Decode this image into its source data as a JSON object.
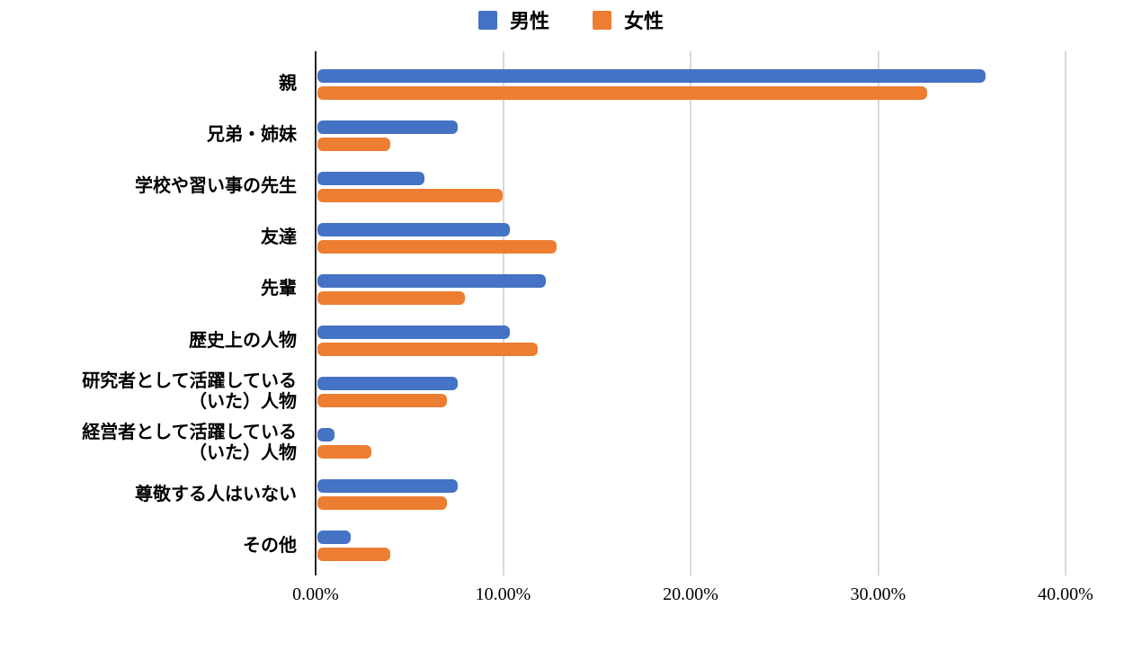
{
  "legend": {
    "items": [
      {
        "id": "male",
        "label": "男性",
        "color": "#4472C4"
      },
      {
        "id": "female",
        "label": "女性",
        "color": "#ED7D31"
      }
    ]
  },
  "chart_data": {
    "type": "bar",
    "orientation": "horizontal",
    "title": "",
    "xlabel": "",
    "ylabel": "",
    "xlim": [
      0,
      40
    ],
    "grid": true,
    "legend_position": "top",
    "x_tick_labels": [
      "0.00%",
      "10.00%",
      "20.00%",
      "30.00%",
      "40.00%"
    ],
    "categories": [
      "親",
      "兄弟・姉妹",
      "学校や習い事の先生",
      "友達",
      "先輩",
      "歴史上の人物",
      "研究者として活躍している（いた）人物",
      "経営者として活躍している（いた）人物",
      "尊敬する人はいない",
      "その他"
    ],
    "categories_display": [
      [
        "親"
      ],
      [
        "兄弟・姉妹"
      ],
      [
        "学校や習い事の先生"
      ],
      [
        "友達"
      ],
      [
        "先輩"
      ],
      [
        "歴史上の人物"
      ],
      [
        "研究者として活躍している",
        "（いた）人物"
      ],
      [
        "経営者として活躍している",
        "（いた）人物"
      ],
      [
        "尊敬する人はいない"
      ],
      [
        "その他"
      ]
    ],
    "series": [
      {
        "id": "male",
        "name": "男性",
        "color": "#4472C4",
        "values": [
          35.7,
          7.5,
          5.7,
          10.3,
          12.2,
          10.3,
          7.5,
          0.9,
          7.5,
          1.8
        ]
      },
      {
        "id": "female",
        "name": "女性",
        "color": "#ED7D31",
        "values": [
          32.6,
          3.9,
          9.9,
          12.8,
          7.9,
          11.8,
          6.9,
          2.9,
          6.9,
          3.9
        ]
      }
    ],
    "colors": {
      "gridline": "#D9D9D9",
      "axis_line": "#262626",
      "text": "#000000"
    }
  }
}
